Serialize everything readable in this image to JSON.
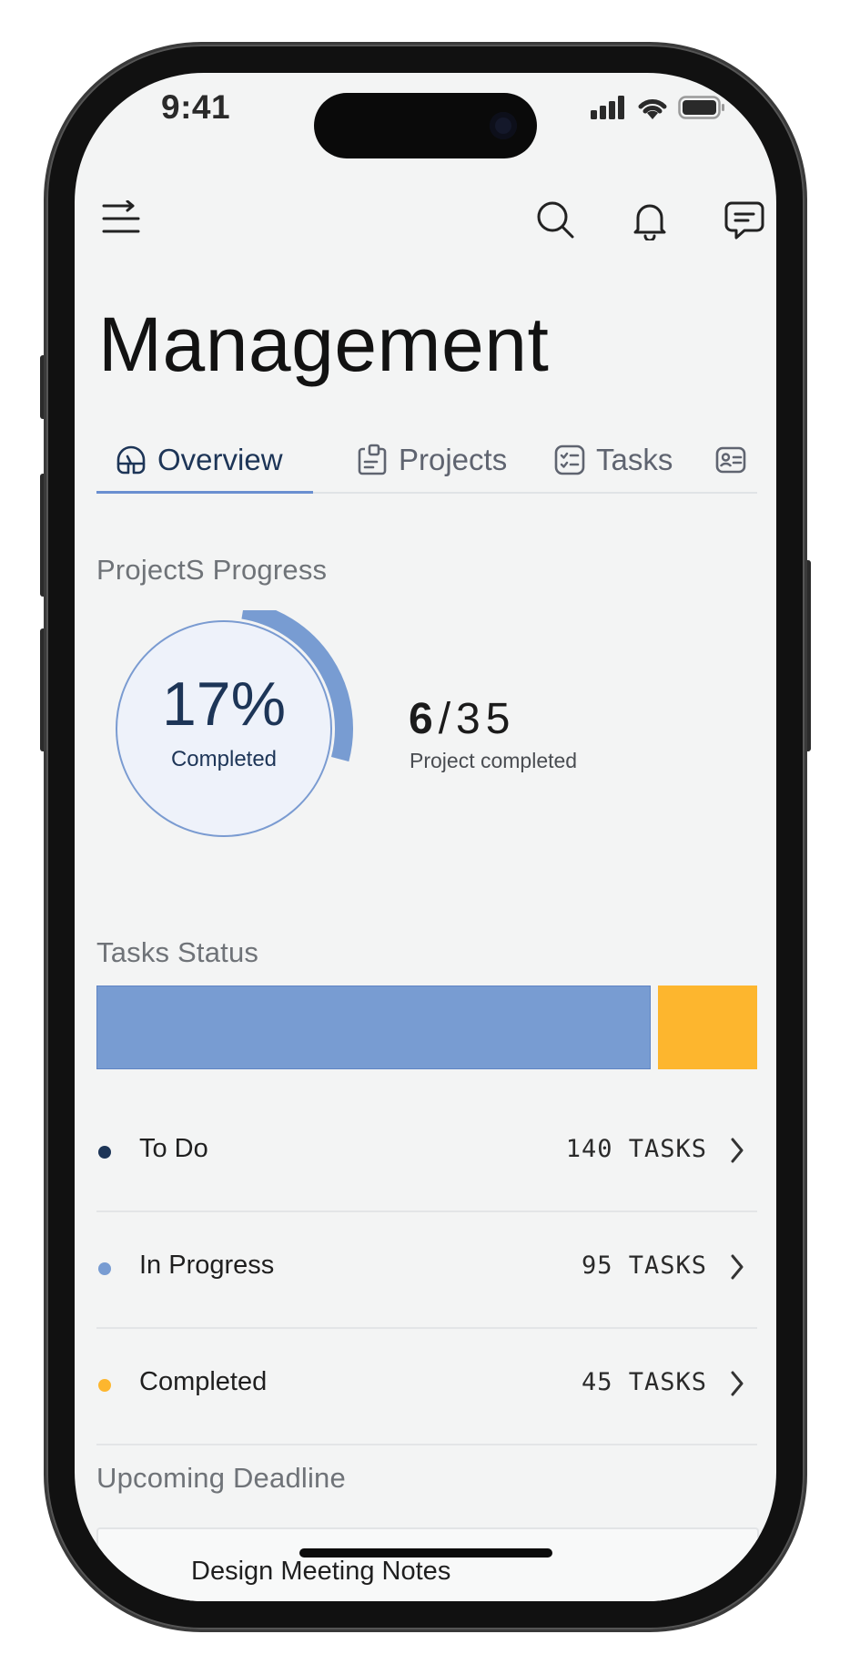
{
  "status_bar": {
    "time": "9:41"
  },
  "header": {
    "menu_icon": "menu-icon",
    "actions": [
      "search-icon",
      "bell-icon",
      "chat-icon"
    ]
  },
  "page": {
    "title": "Management"
  },
  "tabs": [
    {
      "label": "Overview",
      "icon": "dashboard-icon",
      "active": true
    },
    {
      "label": "Projects",
      "icon": "clipboard-icon",
      "active": false
    },
    {
      "label": "Tasks",
      "icon": "checklist-icon",
      "active": false
    },
    {
      "label": "",
      "icon": "contact-card-icon",
      "active": false
    }
  ],
  "progress": {
    "section_label": "ProjectS Progress",
    "percent_text": "17%",
    "percent_value": 0.17,
    "percent_label": "Completed",
    "completed": "6",
    "separator": "/",
    "total": "35",
    "ratio_label": "Project completed"
  },
  "tasks_status": {
    "section_label": "Tasks Status",
    "bar_segments": [
      {
        "name": "In Progress",
        "value": 95,
        "color": "#789cd2"
      },
      {
        "name": "Completed",
        "value": 45,
        "color": "#fdb62e"
      }
    ],
    "items": [
      {
        "label": "To Do",
        "count": "140 TASKS",
        "color": "#1d3557"
      },
      {
        "label": "In Progress",
        "count": "95 TASKS",
        "color": "#789cd2"
      },
      {
        "label": "Completed",
        "count": "45 TASKS",
        "color": "#fdb62e"
      }
    ]
  },
  "deadline": {
    "section_label": "Upcoming Deadline",
    "first_item_title": "Design Meeting Notes"
  },
  "colors": {
    "accent": "#1d3557",
    "accent_light": "#789cd2",
    "warning": "#fdb62e",
    "background": "#f3f4f4"
  }
}
